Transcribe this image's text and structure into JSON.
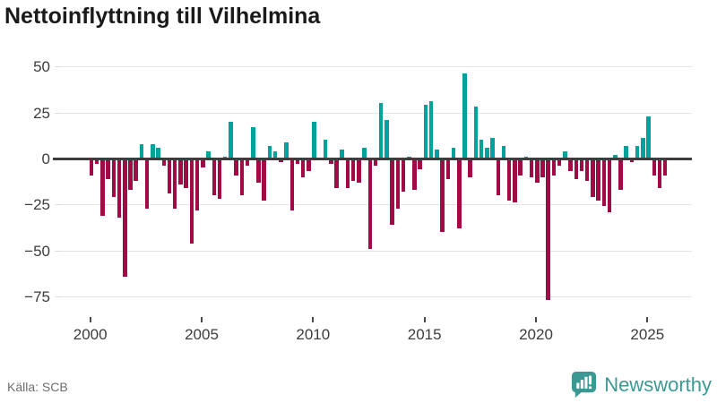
{
  "title": "Nettoinflyttning till Vilhelmina",
  "source": "Källa: SCB",
  "brand": {
    "name": "Newsworthy",
    "logo_icon": "speech-bubble-bar-chart-icon"
  },
  "colors": {
    "positive": "#00a39b",
    "negative": "#a00a45",
    "brand_teal": "#3a9a93",
    "grid": "#e4e4e4",
    "zero_line": "#3d3d3d",
    "axis_text": "#3c3c3c",
    "title_text": "#1a1a1a",
    "source_text": "#6e6e6e"
  },
  "chart_data": {
    "type": "bar",
    "title": "Nettoinflyttning till Vilhelmina",
    "frequency": "quarterly",
    "start": "2000-Q1",
    "end": "2025-Q4",
    "xlabel": "",
    "ylabel": "",
    "grid": "horizontal",
    "legend": "none",
    "ylim": [
      -85,
      57
    ],
    "yticks": [
      50,
      25,
      0,
      -25,
      -50,
      -75
    ],
    "xticks": [
      2000,
      2005,
      2010,
      2015,
      2020,
      2025
    ],
    "series": [
      {
        "name": "Nettoinflyttning",
        "values": [
          -9,
          -3,
          -31,
          -11,
          -21,
          -32,
          -64,
          -17,
          -12,
          8,
          -27,
          8,
          6,
          -4,
          -19,
          -27,
          -14,
          -16,
          -46,
          -28,
          -5,
          4,
          -20,
          -22,
          1,
          20,
          -9,
          -20,
          -4,
          17,
          -13,
          -23,
          7,
          4,
          -2,
          9,
          -28,
          -3,
          -10,
          -7,
          20,
          0,
          10,
          -3,
          -16,
          5,
          -16,
          -12,
          -13,
          6,
          -49,
          -4,
          30,
          21,
          -36,
          -27,
          -18,
          1,
          -17,
          -6,
          29,
          31,
          5,
          -40,
          -11,
          6,
          -38,
          46,
          -10,
          28,
          10,
          6,
          11,
          -20,
          7,
          -23,
          -24,
          -9,
          1,
          -10,
          -13,
          -10,
          -77,
          -9,
          -4,
          4,
          -7,
          -11,
          -7,
          -12,
          -21,
          -23,
          -26,
          -29,
          2,
          -17,
          7,
          -2,
          7,
          11,
          23,
          -9,
          -16,
          -9
        ]
      }
    ]
  }
}
